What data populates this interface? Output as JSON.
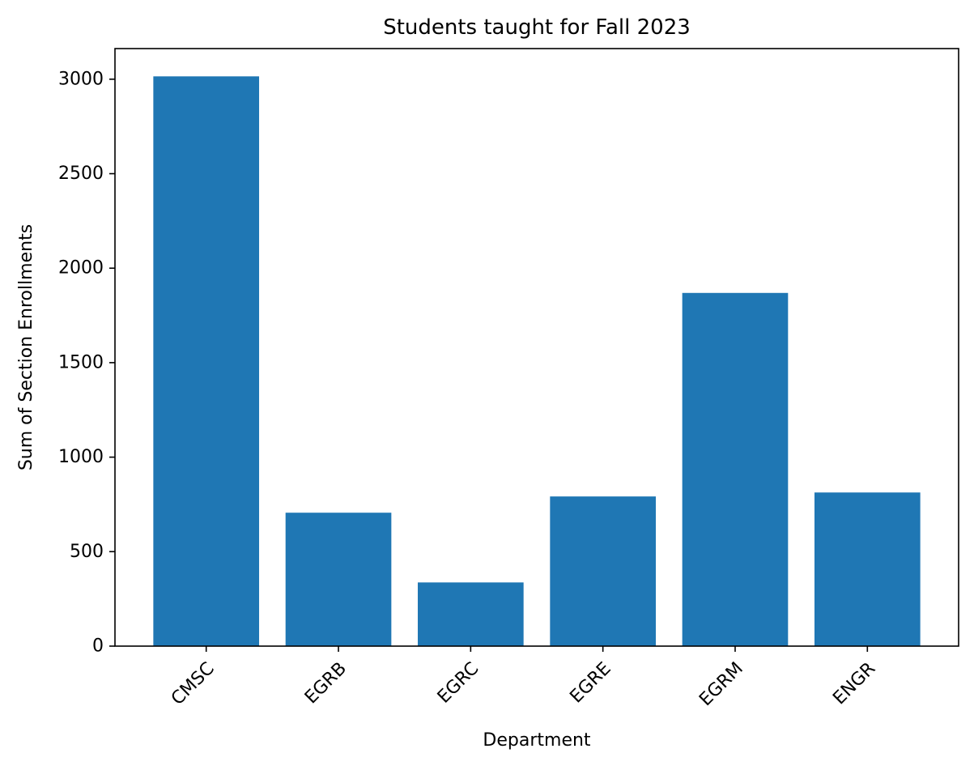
{
  "chart_data": {
    "type": "bar",
    "title": "Students taught for Fall 2023",
    "xlabel": "Department",
    "ylabel": "Sum of Section Enrollments",
    "categories": [
      "CMSC",
      "EGRB",
      "EGRC",
      "EGRE",
      "EGRM",
      "ENGR"
    ],
    "values": [
      3015,
      706,
      337,
      792,
      1869,
      813
    ],
    "ylim": [
      0,
      3162
    ],
    "yticks": [
      0,
      500,
      1000,
      1500,
      2000,
      2500,
      3000
    ],
    "bar_color": "#1f77b4",
    "grid": false,
    "legend": "none",
    "xtick_rotation": 45
  }
}
